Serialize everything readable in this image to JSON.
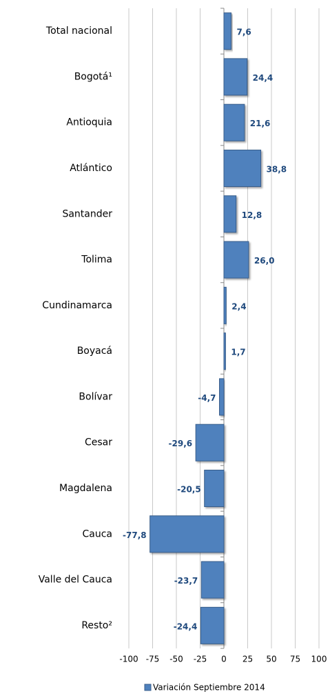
{
  "chart_data": {
    "type": "hbar",
    "categories": [
      "Total nacional",
      "Bogotá¹",
      "Antioquia",
      "Atlántico",
      "Santander",
      "Tolima",
      "Cundinamarca",
      "Boyacá",
      "Bolívar",
      "Cesar",
      "Magdalena",
      "Cauca",
      "Valle del Cauca",
      "Resto²"
    ],
    "series": [
      {
        "name": "Variación Septiembre 2014",
        "color": "#4f81bd",
        "values": [
          7.6,
          24.4,
          21.6,
          38.8,
          12.8,
          26.0,
          2.4,
          1.7,
          -4.7,
          -29.6,
          -20.5,
          -77.8,
          -23.7,
          -24.4
        ],
        "value_labels": [
          "7,6",
          "24,4",
          "21,6",
          "38,8",
          "12,8",
          "26,0",
          "2,4",
          "1,7",
          "-4,7",
          "-29,6",
          "-20,5",
          "-77,8",
          "-23,7",
          "-24,4"
        ]
      }
    ],
    "xlim": [
      -100,
      100
    ],
    "xticks": [
      -100,
      -75,
      -50,
      -25,
      0,
      25,
      50,
      75,
      100
    ],
    "grid": true,
    "legend": "bottom"
  }
}
